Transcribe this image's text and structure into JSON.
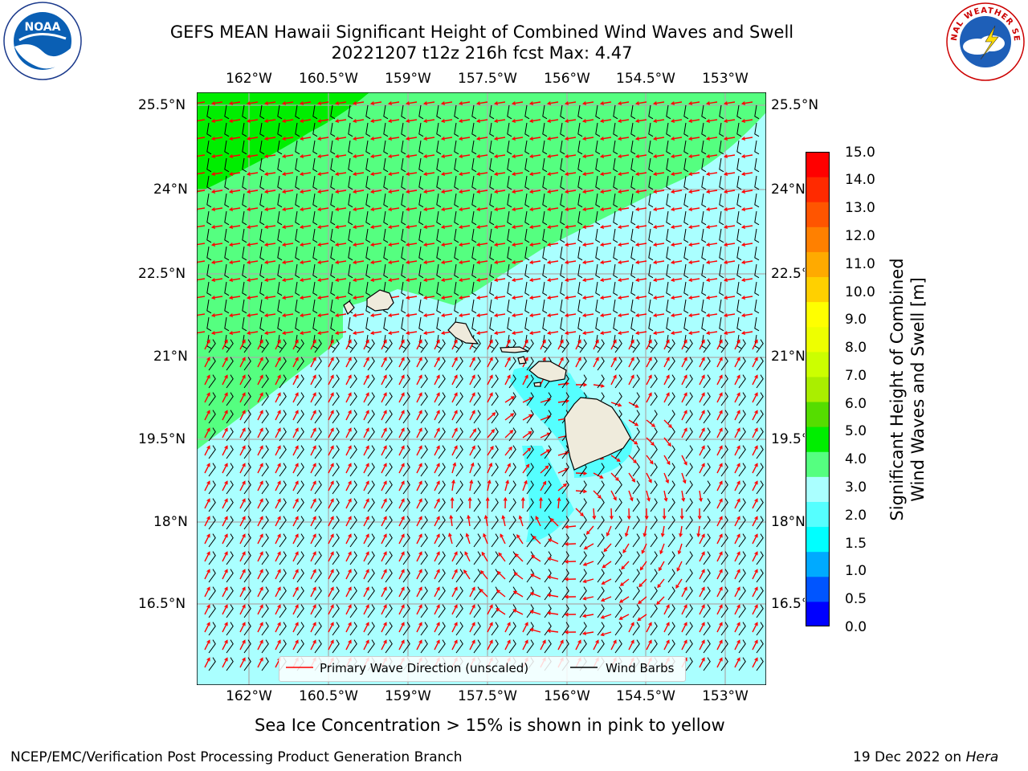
{
  "title": {
    "line1": "GEFS MEAN Hawaii Significant Height of Combined Wind Waves and Swell",
    "line2": "20221207 t12z 216h fcst   Max: 4.47"
  },
  "map": {
    "lon_ticks": [
      "162°W",
      "160.5°W",
      "159°W",
      "157.5°W",
      "156°W",
      "154.5°W",
      "153°W"
    ],
    "lat_ticks": [
      "25.5°N",
      "24°N",
      "22.5°N",
      "21°N",
      "19.5°N",
      "18°N",
      "16.5°N"
    ],
    "max_value": 4.47
  },
  "colorbar": {
    "label_line1": "Significant Height of Combined",
    "label_line2": "Wind Waves and Swell [m]",
    "ticks": [
      "15.0",
      "14.0",
      "13.0",
      "12.0",
      "11.0",
      "10.0",
      "9.0",
      "8.0",
      "7.0",
      "6.0",
      "5.0",
      "4.0",
      "3.0",
      "2.0",
      "1.5",
      "1.0",
      "0.5",
      "0.0"
    ],
    "colors": [
      "#0000ff",
      "#0055ff",
      "#00aaff",
      "#00ffff",
      "#55ffff",
      "#aaffff",
      "#55ff80",
      "#00ee00",
      "#55dd00",
      "#aaee00",
      "#ccff00",
      "#eeff00",
      "#ffff00",
      "#ffd000",
      "#ffaa00",
      "#ff8000",
      "#ff5500",
      "#ff2a00",
      "#ff0000"
    ]
  },
  "legend": {
    "wave_label": "Primary Wave Direction (unscaled)",
    "barb_label": "Wind Barbs"
  },
  "subtitle": "Sea Ice Concentration > 15% is shown in pink to yellow",
  "footer": {
    "left": "NCEP/EMC/Verification Post Processing Product Generation Branch",
    "right_prefix": "19 Dec 2022 on ",
    "right_host": "Hera"
  },
  "logos": {
    "left": "NOAA",
    "right_text": "NATIONAL WEATHER SERVICE"
  }
}
